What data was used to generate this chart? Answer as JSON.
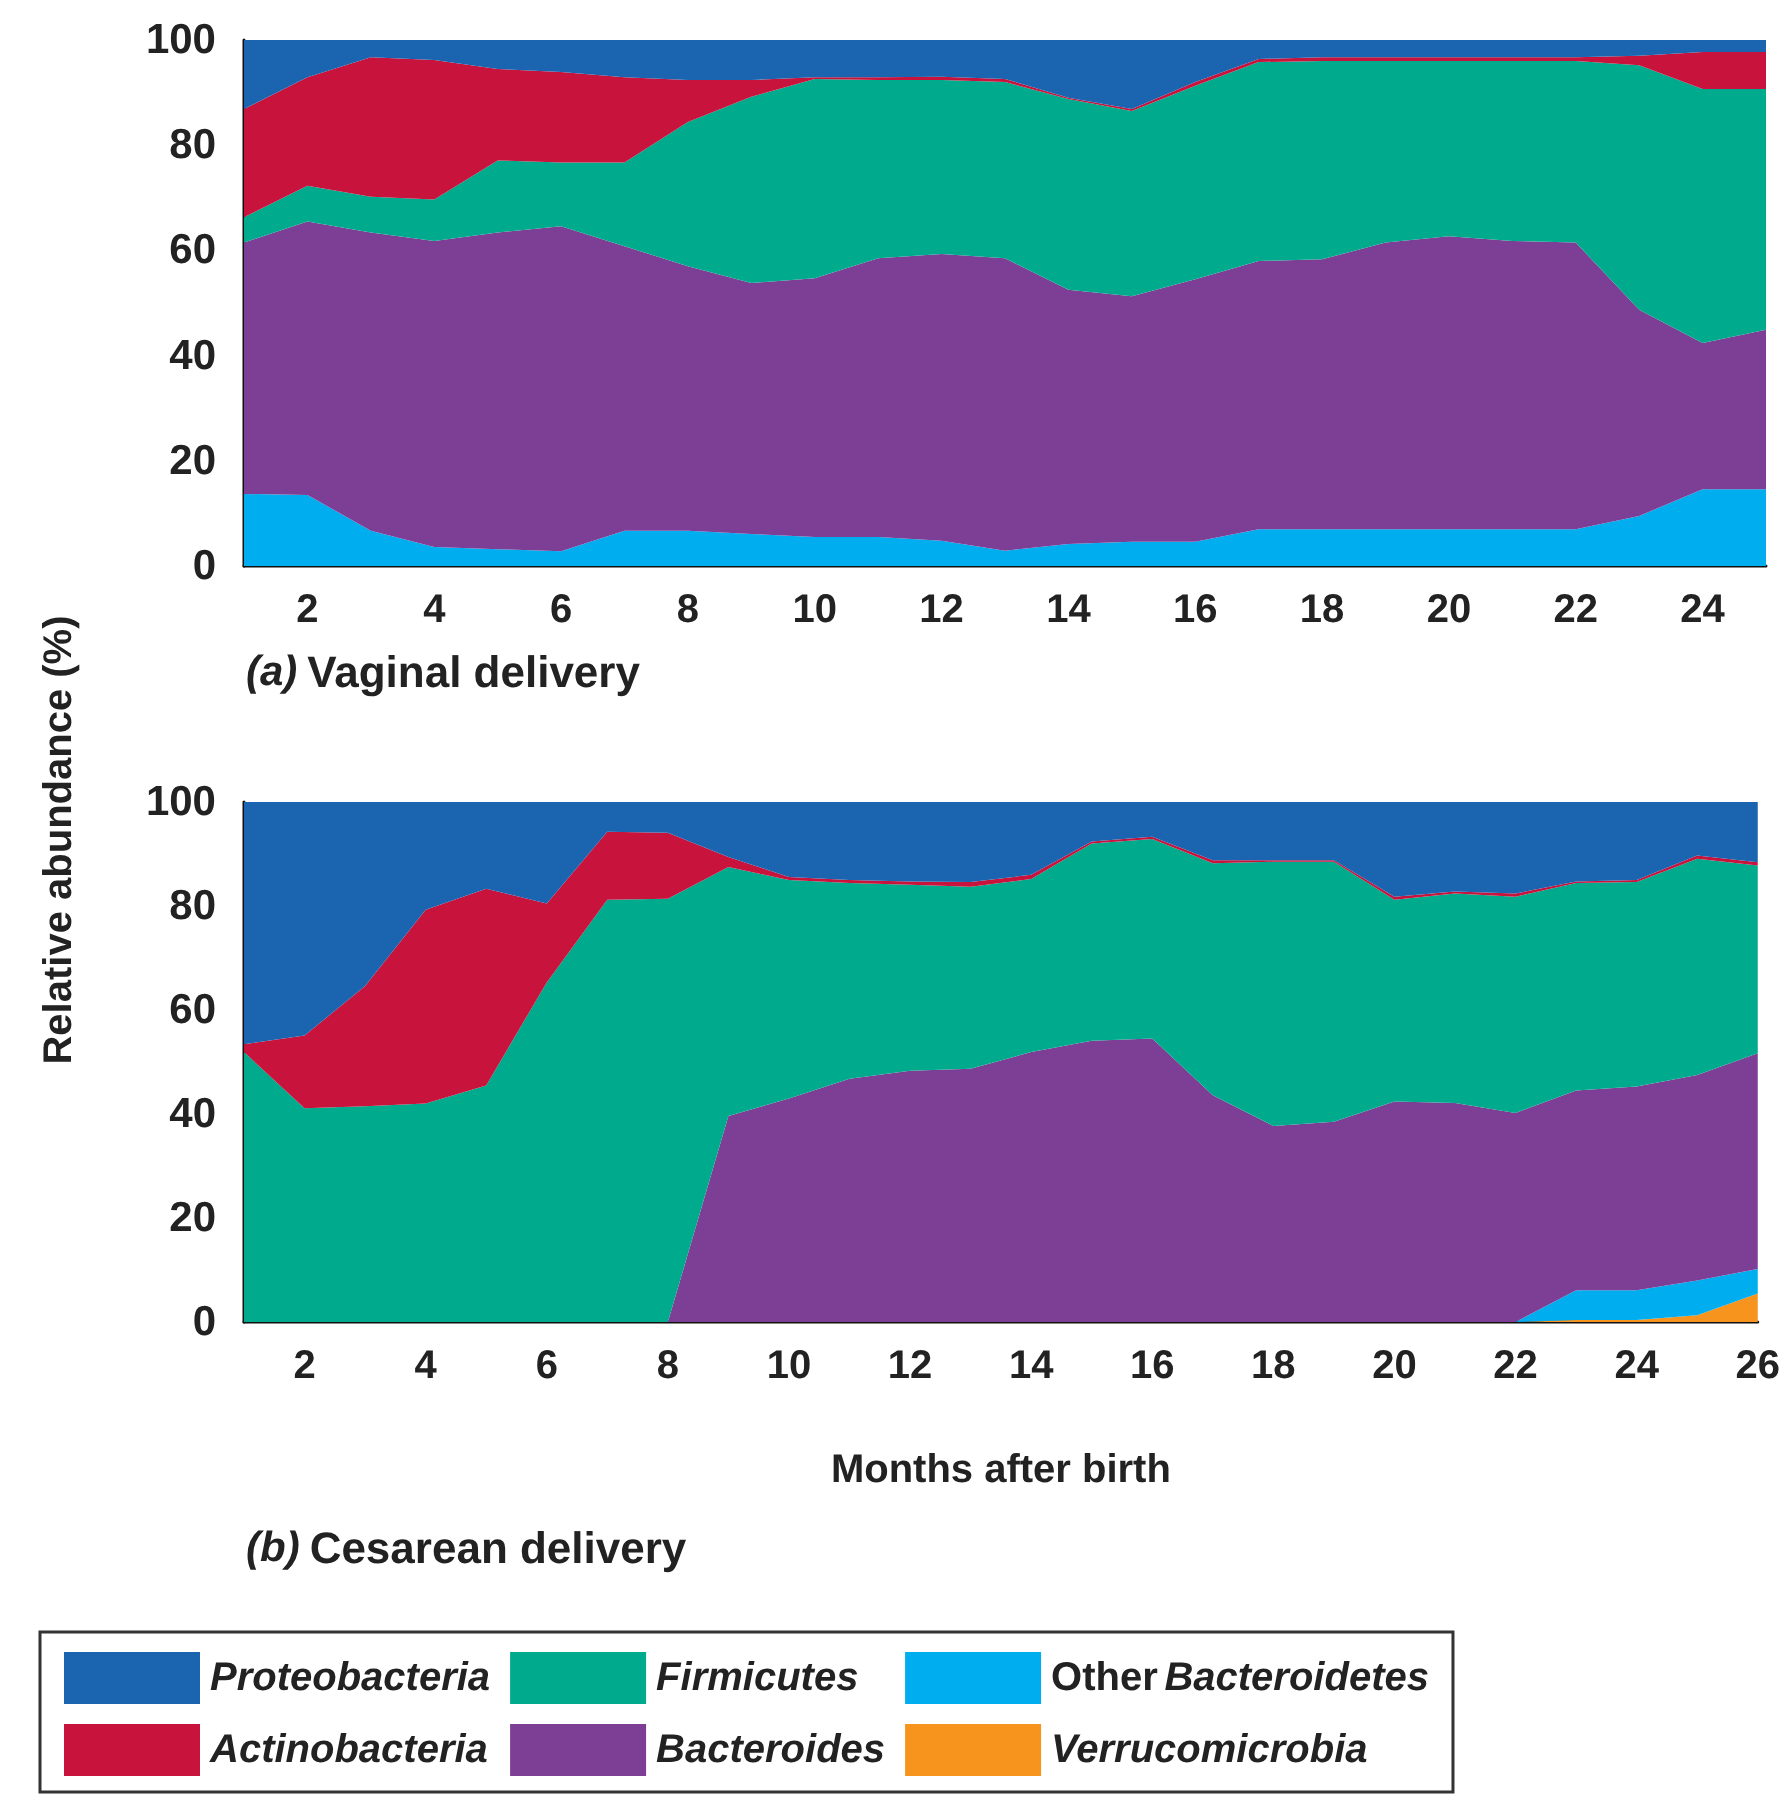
{
  "chart_data": [
    {
      "type": "area",
      "title": "(a) Vaginal delivery",
      "ylabel": "Relative abundance (%)",
      "stacked": true,
      "grid": false,
      "legend": false,
      "x": [
        1,
        2,
        3,
        4,
        5,
        6,
        7,
        8,
        9,
        10,
        11,
        12,
        13,
        14,
        15,
        16,
        17,
        18,
        19,
        20,
        21,
        22,
        23,
        24,
        25
      ],
      "xlim": [
        1,
        25
      ],
      "xticks": [
        2,
        4,
        6,
        8,
        10,
        12,
        14,
        16,
        18,
        20,
        22,
        24
      ],
      "ylim": [
        0,
        100
      ],
      "yticks": [
        0,
        20,
        40,
        60,
        80,
        100
      ],
      "series": [
        {
          "color": "#00aeef",
          "values": [
            13.7,
            13.5,
            6.7,
            3.6,
            3.2,
            2.8,
            6.7,
            6.7,
            6.1,
            5.5,
            5.5,
            4.8,
            2.9,
            4.2,
            4.6,
            4.6,
            7,
            7,
            7,
            7,
            7,
            7,
            9.5,
            14.6,
            14.6
          ]
        },
        {
          "color": "#7d3f96",
          "values": [
            47.8,
            52,
            56.7,
            58.2,
            60.2,
            61.8,
            54.1,
            50.3,
            47.7,
            49.2,
            53,
            54.5,
            55.6,
            48.3,
            46.7,
            49.9,
            51,
            51.3,
            54.5,
            55.7,
            54.8,
            54.5,
            39.2,
            27.8,
            30.3
          ]
        },
        {
          "color": "#00aa8c",
          "values": [
            4.8,
            6.8,
            6.8,
            7.9,
            13.7,
            12.1,
            15.9,
            27.4,
            35.4,
            37.9,
            33.9,
            33.1,
            33.5,
            36.3,
            35.2,
            36.8,
            37.8,
            37.7,
            34.5,
            33.3,
            34.2,
            34.5,
            46.5,
            48.3,
            45.8
          ]
        },
        {
          "color": "#c8143c",
          "values": [
            20.6,
            20.6,
            26.5,
            26.5,
            17.4,
            17.2,
            16.2,
            8,
            3.2,
            0.3,
            0.5,
            0.6,
            0.6,
            0.2,
            0.4,
            0.7,
            0.6,
            0.7,
            0.7,
            0.7,
            0.7,
            0.7,
            1.8,
            7,
            7
          ]
        },
        {
          "color": "#1a64b0",
          "values": [
            13.1,
            7.1,
            3.3,
            3.8,
            5.5,
            6.1,
            7.1,
            7.6,
            7.6,
            7.1,
            7.1,
            7,
            7.4,
            11,
            13.1,
            8,
            3.6,
            3.3,
            3.3,
            3.3,
            3.3,
            3.3,
            3,
            2.3,
            2.3
          ]
        }
      ]
    },
    {
      "type": "area",
      "title": "(b) Cesarean delivery",
      "xlabel": "Months after birth",
      "stacked": true,
      "grid": false,
      "legend": "bottom",
      "x": [
        1,
        2,
        3,
        4,
        5,
        6,
        7,
        8,
        9,
        10,
        11,
        12,
        13,
        14,
        15,
        16,
        17,
        18,
        19,
        20,
        21,
        22,
        23,
        24,
        25,
        26
      ],
      "xlim": [
        1,
        26
      ],
      "xticks": [
        2,
        4,
        6,
        8,
        10,
        12,
        14,
        16,
        18,
        20,
        22,
        24,
        26
      ],
      "ylim": [
        0,
        100
      ],
      "yticks": [
        0,
        20,
        40,
        60,
        80,
        100
      ],
      "series": [
        {
          "name": "Verrucomicrobia",
          "color": "#f7941d",
          "values": [
            0,
            0,
            0,
            0,
            0,
            0,
            0,
            0,
            0,
            0,
            0,
            0,
            0,
            0,
            0,
            0,
            0,
            0,
            0,
            0,
            0,
            0,
            0.4,
            0.4,
            1.3,
            5.5
          ]
        },
        {
          "name": "Other Bacteroidetes",
          "color": "#00aeef",
          "values": [
            0,
            0,
            0,
            0,
            0,
            0,
            0,
            0,
            0,
            0,
            0,
            0,
            0,
            0,
            0,
            0,
            0,
            0,
            0,
            0,
            0,
            0,
            5.7,
            5.7,
            6.7,
            4.7
          ]
        },
        {
          "name": "Bacteroides",
          "color": "#7d3f96",
          "values": [
            0,
            0,
            0,
            0,
            0,
            0,
            0,
            0,
            39.6,
            43,
            46.8,
            48.3,
            48.7,
            51.9,
            54.1,
            54.5,
            43.6,
            37.7,
            38.5,
            42.4,
            42.1,
            40.2,
            38.4,
            39.2,
            39.5,
            41.5
          ]
        },
        {
          "name": "Firmicutes",
          "color": "#00aa8c",
          "values": [
            51.9,
            41.1,
            41.5,
            42,
            45.5,
            65.3,
            81.2,
            81.4,
            47.9,
            42,
            37.6,
            35.8,
            35,
            33.3,
            37.9,
            38.4,
            44.6,
            50.8,
            50,
            38.8,
            40.3,
            41.6,
            39.9,
            39.3,
            41.6,
            36.1
          ]
        },
        {
          "name": "Actinobacteria",
          "color": "#c8143c",
          "values": [
            1.5,
            14,
            23.1,
            37.3,
            37.8,
            15.2,
            13.1,
            12.7,
            1.9,
            0.6,
            0.6,
            0.6,
            0.9,
            0.8,
            0.4,
            0.4,
            0.6,
            0.3,
            0.3,
            0.6,
            0.4,
            0.6,
            0.3,
            0.4,
            0.6,
            0.6
          ]
        },
        {
          "name": "Proteobacteria",
          "color": "#1a64b0",
          "values": [
            46.6,
            44.9,
            35.4,
            20.7,
            16.7,
            19.5,
            5.7,
            5.9,
            10.6,
            14.4,
            15,
            15.3,
            15.4,
            14,
            7.6,
            6.7,
            11.2,
            11.2,
            11.2,
            18.2,
            17.2,
            17.6,
            15.3,
            15,
            10.3,
            11.6
          ]
        }
      ]
    }
  ]
}
